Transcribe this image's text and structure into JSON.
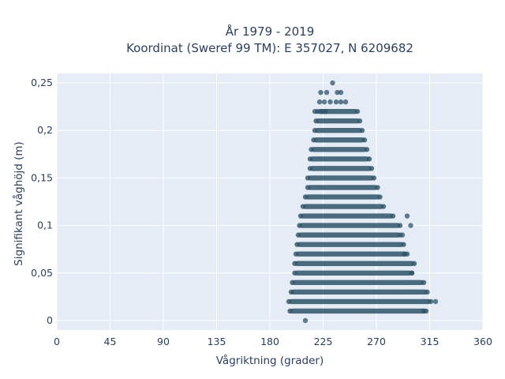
{
  "chart_data": {
    "type": "scatter",
    "title_line1": "År 1979 - 2019",
    "title_line2": "Koordinat (Sweref 99 TM): E 357027, N 6209682",
    "xlabel": "Vågriktning (grader)",
    "ylabel": "Signifikant våghöjd (m)",
    "xlim": [
      0,
      360
    ],
    "ylim": [
      -0.01,
      0.26
    ],
    "x_ticks": [
      0,
      45,
      90,
      135,
      180,
      225,
      270,
      315,
      360
    ],
    "x_tick_labels": [
      "0",
      "45",
      "90",
      "135",
      "180",
      "225",
      "270",
      "315",
      "360"
    ],
    "y_ticks": [
      0,
      0.05,
      0.1,
      0.15,
      0.2,
      0.25
    ],
    "y_tick_labels": [
      "0",
      "0,05",
      "0,1",
      "0,15",
      "0,2",
      "0,25"
    ],
    "grid": true,
    "background": "#e5ecf6",
    "marker_color": "#2f5468",
    "bands": [
      {
        "y": 0.01,
        "xmin": 197,
        "xmax": 312
      },
      {
        "y": 0.02,
        "xmin": 196,
        "xmax": 316
      },
      {
        "y": 0.03,
        "xmin": 198,
        "xmax": 313
      },
      {
        "y": 0.04,
        "xmin": 199,
        "xmax": 310
      },
      {
        "y": 0.05,
        "xmin": 201,
        "xmax": 300
      },
      {
        "y": 0.06,
        "xmin": 201,
        "xmax": 302
      },
      {
        "y": 0.07,
        "xmin": 202,
        "xmax": 296
      },
      {
        "y": 0.08,
        "xmin": 203,
        "xmax": 293
      },
      {
        "y": 0.09,
        "xmin": 204,
        "xmax": 290
      },
      {
        "y": 0.1,
        "xmin": 205,
        "xmax": 290
      },
      {
        "y": 0.11,
        "xmin": 206,
        "xmax": 284
      },
      {
        "y": 0.12,
        "xmin": 208,
        "xmax": 276
      },
      {
        "y": 0.13,
        "xmin": 210,
        "xmax": 273
      },
      {
        "y": 0.14,
        "xmin": 212,
        "xmax": 271
      },
      {
        "y": 0.15,
        "xmin": 212,
        "xmax": 268
      },
      {
        "y": 0.16,
        "xmin": 214,
        "xmax": 266
      },
      {
        "y": 0.17,
        "xmin": 214,
        "xmax": 264
      },
      {
        "y": 0.18,
        "xmin": 215,
        "xmax": 262
      },
      {
        "y": 0.19,
        "xmin": 217,
        "xmax": 260
      },
      {
        "y": 0.2,
        "xmin": 218,
        "xmax": 258
      },
      {
        "y": 0.21,
        "xmin": 219,
        "xmax": 256
      },
      {
        "y": 0.22,
        "xmin": 220,
        "xmax": 254
      }
    ],
    "sparse_points": [
      {
        "x": 210,
        "y": 0.0
      },
      {
        "x": 320,
        "y": 0.02
      },
      {
        "x": 310,
        "y": 0.01
      },
      {
        "x": 299,
        "y": 0.1
      },
      {
        "x": 296,
        "y": 0.11
      },
      {
        "x": 294,
        "y": 0.07
      },
      {
        "x": 292,
        "y": 0.09
      },
      {
        "x": 300,
        "y": 0.05
      },
      {
        "x": 218,
        "y": 0.22
      },
      {
        "x": 224,
        "y": 0.22
      },
      {
        "x": 227,
        "y": 0.22
      },
      {
        "x": 222,
        "y": 0.23
      },
      {
        "x": 226,
        "y": 0.23
      },
      {
        "x": 231,
        "y": 0.23
      },
      {
        "x": 236,
        "y": 0.23
      },
      {
        "x": 240,
        "y": 0.23
      },
      {
        "x": 244,
        "y": 0.23
      },
      {
        "x": 223,
        "y": 0.24
      },
      {
        "x": 228,
        "y": 0.24
      },
      {
        "x": 237,
        "y": 0.24
      },
      {
        "x": 240,
        "y": 0.24
      },
      {
        "x": 233,
        "y": 0.25
      }
    ]
  }
}
